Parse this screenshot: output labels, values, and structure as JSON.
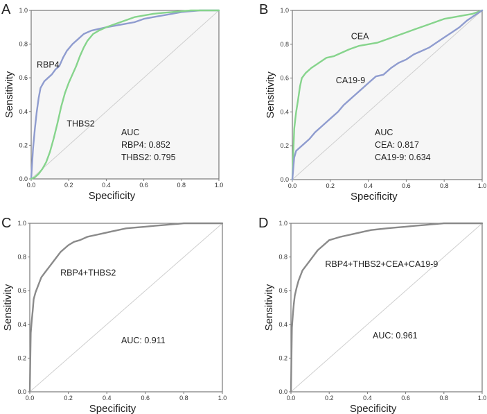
{
  "chart_data": [
    {
      "panel": "A",
      "type": "line",
      "xlabel": "Specificity",
      "ylabel": "Sensitivity",
      "xlim": [
        0,
        1
      ],
      "ylim": [
        0,
        1
      ],
      "xticks": [
        "0.0",
        "0.2",
        "0.4",
        "0.6",
        "0.8",
        "1.0"
      ],
      "yticks": [
        "0.0",
        "0.2",
        "0.4",
        "0.6",
        "0.8",
        "1.0"
      ],
      "background": "#f6f6f6",
      "series": [
        {
          "name": "RBP4",
          "color": "#8f9ccf",
          "label": "RBP4",
          "label_at": [
            0.0,
            0.66
          ],
          "x": [
            0,
            0.01,
            0.02,
            0.03,
            0.04,
            0.05,
            0.07,
            0.09,
            0.11,
            0.13,
            0.15,
            0.17,
            0.19,
            0.22,
            0.25,
            0.28,
            0.32,
            0.36,
            0.4,
            0.45,
            0.5,
            0.55,
            0.6,
            0.65,
            0.7,
            0.75,
            0.8,
            0.85,
            0.9,
            0.95,
            1.0
          ],
          "y": [
            0,
            0.18,
            0.3,
            0.4,
            0.48,
            0.54,
            0.58,
            0.6,
            0.62,
            0.65,
            0.67,
            0.72,
            0.76,
            0.8,
            0.83,
            0.86,
            0.88,
            0.89,
            0.9,
            0.91,
            0.92,
            0.93,
            0.95,
            0.96,
            0.97,
            0.98,
            0.99,
            0.995,
            1.0,
            1.0,
            1.0
          ]
        },
        {
          "name": "THBS2",
          "color": "#86d48c",
          "label": "THBS2",
          "label_at": [
            0.16,
            0.31
          ],
          "x": [
            0,
            0.02,
            0.04,
            0.06,
            0.08,
            0.1,
            0.12,
            0.14,
            0.16,
            0.18,
            0.2,
            0.22,
            0.24,
            0.26,
            0.28,
            0.3,
            0.33,
            0.36,
            0.4,
            0.45,
            0.5,
            0.55,
            0.6,
            0.65,
            0.7,
            0.75,
            0.8,
            0.85,
            0.9,
            0.95,
            1.0
          ],
          "y": [
            0,
            0.01,
            0.03,
            0.06,
            0.1,
            0.16,
            0.24,
            0.33,
            0.43,
            0.51,
            0.57,
            0.62,
            0.67,
            0.73,
            0.78,
            0.82,
            0.86,
            0.88,
            0.9,
            0.92,
            0.94,
            0.96,
            0.97,
            0.98,
            0.985,
            0.99,
            0.995,
            1.0,
            1.0,
            1.0,
            1.0
          ]
        }
      ],
      "annotations": [
        "AUC",
        "RBP4: 0.852",
        "THBS2: 0.795"
      ]
    },
    {
      "panel": "B",
      "type": "line",
      "xlabel": "Specificity",
      "ylabel": "Sensitivity",
      "xlim": [
        0,
        1
      ],
      "ylim": [
        0,
        1
      ],
      "xticks": [
        "0.0",
        "0.2",
        "0.4",
        "0.6",
        "0.8",
        "1.0"
      ],
      "yticks": [
        "0.0",
        "0.2",
        "0.4",
        "0.6",
        "0.8",
        "1.0"
      ],
      "background": "#f6f6f6",
      "series": [
        {
          "name": "CEA",
          "color": "#86d48c",
          "label": "CEA",
          "label_at": [
            0.28,
            0.83
          ],
          "x": [
            0,
            0.01,
            0.02,
            0.03,
            0.04,
            0.05,
            0.07,
            0.1,
            0.14,
            0.18,
            0.22,
            0.26,
            0.3,
            0.35,
            0.4,
            0.45,
            0.5,
            0.55,
            0.6,
            0.65,
            0.7,
            0.75,
            0.8,
            0.85,
            0.9,
            0.95,
            1.0
          ],
          "y": [
            0,
            0.3,
            0.4,
            0.47,
            0.55,
            0.6,
            0.63,
            0.66,
            0.69,
            0.72,
            0.73,
            0.75,
            0.77,
            0.79,
            0.8,
            0.81,
            0.83,
            0.85,
            0.87,
            0.89,
            0.91,
            0.93,
            0.95,
            0.96,
            0.97,
            0.98,
            1.0
          ]
        },
        {
          "name": "CA19-9",
          "color": "#8f9ccf",
          "label": "CA19-9",
          "label_at": [
            0.2,
            0.57
          ],
          "x": [
            0,
            0.01,
            0.02,
            0.04,
            0.06,
            0.09,
            0.12,
            0.15,
            0.18,
            0.21,
            0.24,
            0.27,
            0.3,
            0.33,
            0.36,
            0.4,
            0.44,
            0.48,
            0.52,
            0.56,
            0.6,
            0.64,
            0.68,
            0.72,
            0.76,
            0.8,
            0.84,
            0.88,
            0.92,
            0.96,
            1.0
          ],
          "y": [
            0,
            0.13,
            0.17,
            0.19,
            0.21,
            0.24,
            0.28,
            0.31,
            0.34,
            0.37,
            0.4,
            0.44,
            0.47,
            0.5,
            0.53,
            0.57,
            0.61,
            0.62,
            0.66,
            0.69,
            0.71,
            0.74,
            0.76,
            0.78,
            0.81,
            0.84,
            0.87,
            0.9,
            0.94,
            0.97,
            1.0
          ]
        }
      ],
      "annotations": [
        "AUC",
        "CEA: 0.817",
        "CA19-9: 0.634"
      ]
    },
    {
      "panel": "C",
      "type": "line",
      "xlabel": "Specificity",
      "ylabel": "Sensitivity",
      "xlim": [
        0,
        1
      ],
      "ylim": [
        0,
        1
      ],
      "xticks": [
        "0.0",
        "0.2",
        "0.4",
        "0.6",
        "0.8",
        "1.0"
      ],
      "yticks": [
        "0.0",
        "0.2",
        "0.4",
        "0.6",
        "0.8",
        "1.0"
      ],
      "background": "#ffffff",
      "series": [
        {
          "name": "RBP4+THBS2",
          "color": "#8a8a8a",
          "label": "RBP4+THBS2",
          "label_at": [
            0.13,
            0.69
          ],
          "x": [
            0,
            0.005,
            0.01,
            0.015,
            0.02,
            0.03,
            0.04,
            0.05,
            0.06,
            0.08,
            0.1,
            0.12,
            0.14,
            0.16,
            0.18,
            0.2,
            0.23,
            0.26,
            0.3,
            0.34,
            0.38,
            0.42,
            0.46,
            0.5,
            0.55,
            0.6,
            0.65,
            0.7,
            0.75,
            0.8,
            0.9,
            1.0
          ],
          "y": [
            0,
            0.35,
            0.42,
            0.48,
            0.55,
            0.59,
            0.62,
            0.65,
            0.68,
            0.71,
            0.74,
            0.77,
            0.8,
            0.83,
            0.85,
            0.87,
            0.89,
            0.9,
            0.92,
            0.93,
            0.94,
            0.95,
            0.96,
            0.97,
            0.975,
            0.98,
            0.985,
            0.99,
            0.995,
            1.0,
            1.0,
            1.0
          ]
        }
      ],
      "annotations": [
        "AUC: 0.911"
      ]
    },
    {
      "panel": "D",
      "type": "line",
      "xlabel": "Specificity",
      "ylabel": "Sensitivity",
      "xlim": [
        0,
        1
      ],
      "ylim": [
        0,
        1
      ],
      "xticks": [
        "0.0",
        "0.2",
        "0.4",
        "0.6",
        "0.8",
        "1.0"
      ],
      "yticks": [
        "0.0",
        "0.2",
        "0.4",
        "0.6",
        "0.8",
        "1.0"
      ],
      "background": "#ffffff",
      "series": [
        {
          "name": "RBP4+THBS2+CEA+CA19-9",
          "color": "#8a8a8a",
          "label": "RBP4+THBS2+CEA+CA19-9",
          "label_at": [
            0.15,
            0.74
          ],
          "x": [
            0,
            0.005,
            0.01,
            0.015,
            0.02,
            0.03,
            0.04,
            0.05,
            0.06,
            0.08,
            0.1,
            0.12,
            0.14,
            0.16,
            0.18,
            0.2,
            0.23,
            0.26,
            0.3,
            0.34,
            0.38,
            0.42,
            0.46,
            0.5,
            0.55,
            0.6,
            0.65,
            0.7,
            0.75,
            0.8,
            0.9,
            1.0
          ],
          "y": [
            0,
            0.38,
            0.46,
            0.52,
            0.57,
            0.62,
            0.66,
            0.69,
            0.72,
            0.75,
            0.78,
            0.81,
            0.84,
            0.86,
            0.88,
            0.9,
            0.91,
            0.92,
            0.93,
            0.94,
            0.95,
            0.96,
            0.965,
            0.97,
            0.975,
            0.98,
            0.985,
            0.99,
            0.995,
            1.0,
            1.0,
            1.0
          ]
        }
      ],
      "annotations": [
        "AUC: 0.961"
      ]
    }
  ]
}
